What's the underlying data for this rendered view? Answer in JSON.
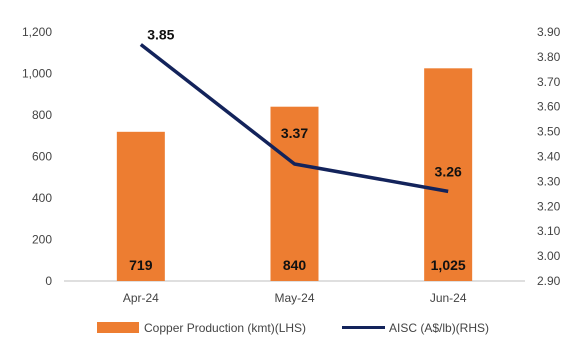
{
  "chart_data": {
    "type": "bar",
    "categories": [
      "Apr-24",
      "May-24",
      "Jun-24"
    ],
    "series": [
      {
        "name": "Copper Production (kmt)(LHS)",
        "type": "bar",
        "axis": "left",
        "values": [
          719,
          840,
          1025
        ],
        "labels": [
          "719",
          "840",
          "1,025"
        ],
        "color": "#ED7D31"
      },
      {
        "name": "AISC (A$/lb)(RHS)",
        "type": "line",
        "axis": "right",
        "values": [
          3.85,
          3.37,
          3.26
        ],
        "labels": [
          "3.85",
          "3.37",
          "3.26"
        ],
        "color": "#13235B"
      }
    ],
    "y_left": {
      "ylim": [
        0,
        1200
      ],
      "ticks": [
        0,
        200,
        400,
        600,
        800,
        1000,
        1200
      ],
      "tick_labels": [
        "0",
        "200",
        "400",
        "600",
        "800",
        "1,000",
        "1,200"
      ]
    },
    "y_right": {
      "ylim": [
        2.9,
        3.9
      ],
      "ticks": [
        2.9,
        3.0,
        3.1,
        3.2,
        3.3,
        3.4,
        3.5,
        3.6,
        3.7,
        3.8,
        3.9
      ],
      "tick_labels": [
        "2.90",
        "3.00",
        "3.10",
        "3.20",
        "3.30",
        "3.40",
        "3.50",
        "3.60",
        "3.70",
        "3.80",
        "3.90"
      ]
    },
    "grid": false,
    "legend_position": "bottom-center"
  }
}
